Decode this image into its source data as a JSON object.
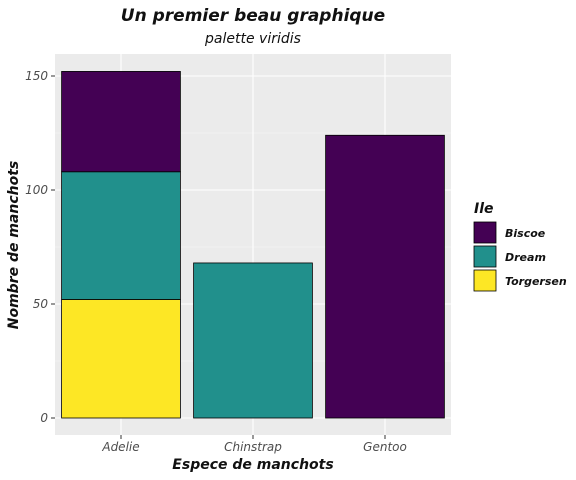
{
  "chart_data": {
    "type": "bar",
    "stacked": true,
    "title": "Un premier beau graphique",
    "subtitle": "palette viridis",
    "xlabel": "Espece de manchots",
    "ylabel": "Nombre de manchots",
    "categories": [
      "Adelie",
      "Chinstrap",
      "Gentoo"
    ],
    "ylim": [
      0,
      160
    ],
    "yticks": [
      0,
      50,
      100,
      150
    ],
    "grid": true,
    "legend": {
      "title": "Ile",
      "position": "right"
    },
    "series": [
      {
        "name": "Biscoe",
        "color": "#440154",
        "values": [
          44,
          0,
          124
        ]
      },
      {
        "name": "Dream",
        "color": "#21908C",
        "values": [
          56,
          68,
          0
        ]
      },
      {
        "name": "Torgersen",
        "color": "#FDE725",
        "values": [
          52,
          0,
          0
        ]
      }
    ],
    "stack_order_bottom_to_top": [
      "Torgersen",
      "Dream",
      "Biscoe"
    ]
  }
}
